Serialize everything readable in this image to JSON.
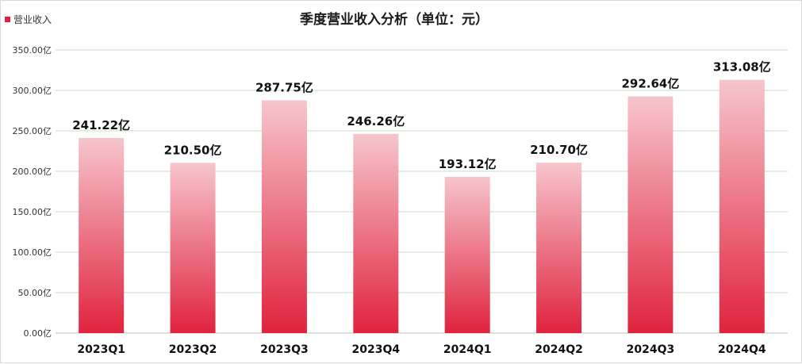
{
  "chart_data": {
    "type": "bar",
    "title": "季度营业收入分析（单位：元）",
    "xlabel": "",
    "ylabel": "",
    "categories": [
      "2023Q1",
      "2023Q2",
      "2023Q3",
      "2023Q4",
      "2024Q1",
      "2024Q2",
      "2024Q3",
      "2024Q4"
    ],
    "series": [
      {
        "name": "营业收入",
        "values": [
          241.22,
          210.5,
          287.75,
          246.26,
          193.12,
          210.7,
          292.64,
          313.08
        ],
        "data_labels": [
          "241.22亿",
          "210.50亿",
          "287.75亿",
          "246.26亿",
          "193.12亿",
          "210.70亿",
          "292.64亿",
          "313.08亿"
        ],
        "color_top": "#f7c5cd",
        "color_bottom": "#e0233d"
      }
    ],
    "ylim": [
      0,
      350
    ],
    "yticks": [
      0,
      50,
      100,
      150,
      200,
      250,
      300,
      350
    ],
    "ytick_labels": [
      "0.00亿",
      "50.00亿",
      "100.00亿",
      "150.00亿",
      "200.00亿",
      "250.00亿",
      "300.00亿",
      "350.00亿"
    ],
    "grid": true,
    "grid_color": "#c3dec3",
    "legend_position": "top-left"
  }
}
